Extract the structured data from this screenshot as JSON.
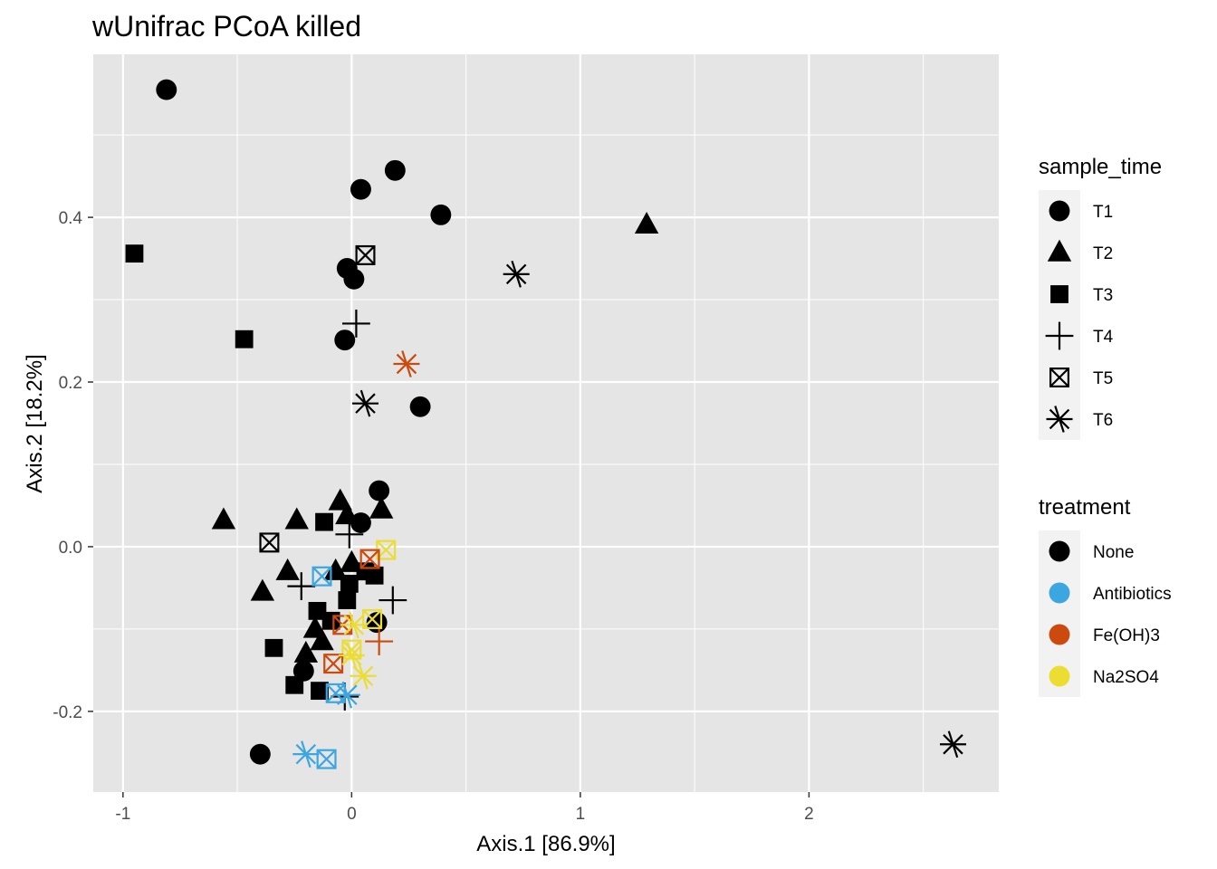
{
  "chart_data": {
    "type": "scatter",
    "title": "wUnifrac PCoA killed",
    "xlabel": "Axis.1   [86.9%]",
    "ylabel": "Axis.2   [18.2%]",
    "xlim": [
      -1.13,
      2.83
    ],
    "ylim": [
      -0.298,
      0.598
    ],
    "x_ticks": [
      -1,
      0,
      1,
      2
    ],
    "x_tick_labels": [
      "-1",
      "0",
      "1",
      "2"
    ],
    "y_ticks": [
      -0.2,
      0.0,
      0.2,
      0.4
    ],
    "y_tick_labels": [
      "-0.2",
      "0.0",
      "0.2",
      "0.4"
    ],
    "grid": true,
    "panel_background": "#e5e5e5",
    "grid_color": "#ffffff",
    "legends": [
      {
        "title": "sample_time",
        "placement": "right-top",
        "entries": [
          {
            "label": "T1",
            "shape": "circle"
          },
          {
            "label": "T2",
            "shape": "triangle"
          },
          {
            "label": "T3",
            "shape": "square"
          },
          {
            "label": "T4",
            "shape": "plus"
          },
          {
            "label": "T5",
            "shape": "square-x"
          },
          {
            "label": "T6",
            "shape": "asterisk"
          }
        ]
      },
      {
        "title": "treatment",
        "placement": "right-middle",
        "entries": [
          {
            "label": "None",
            "color": "#000000"
          },
          {
            "label": "Antibiotics",
            "color": "#3ba6e0"
          },
          {
            "label": "Fe(OH)3",
            "color": "#cc4a0e"
          },
          {
            "label": "Na2SO4",
            "color": "#ebdd31"
          }
        ]
      }
    ],
    "points": [
      {
        "x": -0.81,
        "y": 0.555,
        "time": "T1",
        "treatment": "None"
      },
      {
        "x": 0.19,
        "y": 0.457,
        "time": "T1",
        "treatment": "None"
      },
      {
        "x": 0.04,
        "y": 0.434,
        "time": "T1",
        "treatment": "None"
      },
      {
        "x": 0.39,
        "y": 0.403,
        "time": "T1",
        "treatment": "None"
      },
      {
        "x": -0.02,
        "y": 0.338,
        "time": "T1",
        "treatment": "None"
      },
      {
        "x": 0.01,
        "y": 0.325,
        "time": "T1",
        "treatment": "None"
      },
      {
        "x": -0.03,
        "y": 0.251,
        "time": "T1",
        "treatment": "None"
      },
      {
        "x": 0.3,
        "y": 0.17,
        "time": "T1",
        "treatment": "None"
      },
      {
        "x": 0.12,
        "y": 0.068,
        "time": "T1",
        "treatment": "None"
      },
      {
        "x": 0.04,
        "y": 0.029,
        "time": "T1",
        "treatment": "None"
      },
      {
        "x": 0.11,
        "y": -0.092,
        "time": "T1",
        "treatment": "None"
      },
      {
        "x": -0.21,
        "y": -0.151,
        "time": "T1",
        "treatment": "None"
      },
      {
        "x": -0.4,
        "y": -0.252,
        "time": "T1",
        "treatment": "None"
      },
      {
        "x": 1.29,
        "y": 0.391,
        "time": "T2",
        "treatment": "None"
      },
      {
        "x": -0.56,
        "y": 0.032,
        "time": "T2",
        "treatment": "None"
      },
      {
        "x": -0.24,
        "y": 0.032,
        "time": "T2",
        "treatment": "None"
      },
      {
        "x": -0.05,
        "y": 0.055,
        "time": "T2",
        "treatment": "None"
      },
      {
        "x": -0.02,
        "y": 0.038,
        "time": "T2",
        "treatment": "None"
      },
      {
        "x": 0.13,
        "y": 0.045,
        "time": "T2",
        "treatment": "None"
      },
      {
        "x": -0.39,
        "y": -0.055,
        "time": "T2",
        "treatment": "None"
      },
      {
        "x": -0.28,
        "y": -0.03,
        "time": "T2",
        "treatment": "None"
      },
      {
        "x": -0.07,
        "y": -0.03,
        "time": "T2",
        "treatment": "None"
      },
      {
        "x": 0.0,
        "y": -0.02,
        "time": "T2",
        "treatment": "None"
      },
      {
        "x": -0.16,
        "y": -0.1,
        "time": "T2",
        "treatment": "None"
      },
      {
        "x": -0.13,
        "y": -0.115,
        "time": "T2",
        "treatment": "None"
      },
      {
        "x": -0.2,
        "y": -0.13,
        "time": "T2",
        "treatment": "None"
      },
      {
        "x": -0.95,
        "y": 0.356,
        "time": "T3",
        "treatment": "None"
      },
      {
        "x": -0.47,
        "y": 0.252,
        "time": "T3",
        "treatment": "None"
      },
      {
        "x": -0.12,
        "y": 0.03,
        "time": "T3",
        "treatment": "None"
      },
      {
        "x": 0.1,
        "y": -0.035,
        "time": "T3",
        "treatment": "None"
      },
      {
        "x": 0.06,
        "y": -0.03,
        "time": "T3",
        "treatment": "None"
      },
      {
        "x": -0.01,
        "y": -0.045,
        "time": "T3",
        "treatment": "None"
      },
      {
        "x": -0.02,
        "y": -0.065,
        "time": "T3",
        "treatment": "None"
      },
      {
        "x": -0.15,
        "y": -0.078,
        "time": "T3",
        "treatment": "None"
      },
      {
        "x": -0.09,
        "y": -0.09,
        "time": "T3",
        "treatment": "None"
      },
      {
        "x": -0.34,
        "y": -0.123,
        "time": "T3",
        "treatment": "None"
      },
      {
        "x": -0.25,
        "y": -0.168,
        "time": "T3",
        "treatment": "None"
      },
      {
        "x": -0.14,
        "y": -0.175,
        "time": "T3",
        "treatment": "None"
      },
      {
        "x": 0.02,
        "y": 0.271,
        "time": "T4",
        "treatment": "None"
      },
      {
        "x": -0.01,
        "y": 0.015,
        "time": "T4",
        "treatment": "None"
      },
      {
        "x": -0.22,
        "y": -0.048,
        "time": "T4",
        "treatment": "None"
      },
      {
        "x": 0.18,
        "y": -0.065,
        "time": "T4",
        "treatment": "None"
      },
      {
        "x": 0.12,
        "y": -0.115,
        "time": "T4",
        "treatment": "Fe(OH)3"
      },
      {
        "x": -0.03,
        "y": -0.182,
        "time": "T4",
        "treatment": "None"
      },
      {
        "x": 0.06,
        "y": 0.354,
        "time": "T5",
        "treatment": "None"
      },
      {
        "x": -0.36,
        "y": 0.005,
        "time": "T5",
        "treatment": "None"
      },
      {
        "x": -0.13,
        "y": -0.036,
        "time": "T5",
        "treatment": "Antibiotics"
      },
      {
        "x": 0.15,
        "y": -0.004,
        "time": "T5",
        "treatment": "Na2SO4"
      },
      {
        "x": 0.08,
        "y": -0.015,
        "time": "T5",
        "treatment": "Fe(OH)3"
      },
      {
        "x": 0.09,
        "y": -0.088,
        "time": "T5",
        "treatment": "Na2SO4"
      },
      {
        "x": -0.04,
        "y": -0.095,
        "time": "T5",
        "treatment": "Fe(OH)3"
      },
      {
        "x": 0.0,
        "y": -0.125,
        "time": "T5",
        "treatment": "Na2SO4"
      },
      {
        "x": -0.08,
        "y": -0.142,
        "time": "T5",
        "treatment": "Fe(OH)3"
      },
      {
        "x": -0.07,
        "y": -0.178,
        "time": "T5",
        "treatment": "Antibiotics"
      },
      {
        "x": -0.11,
        "y": -0.258,
        "time": "T5",
        "treatment": "Antibiotics"
      },
      {
        "x": 0.72,
        "y": 0.331,
        "time": "T6",
        "treatment": "None"
      },
      {
        "x": 0.24,
        "y": 0.222,
        "time": "T6",
        "treatment": "Fe(OH)3"
      },
      {
        "x": 0.06,
        "y": 0.174,
        "time": "T6",
        "treatment": "None"
      },
      {
        "x": 0.01,
        "y": -0.095,
        "time": "T6",
        "treatment": "Na2SO4"
      },
      {
        "x": 0.0,
        "y": -0.132,
        "time": "T6",
        "treatment": "Na2SO4"
      },
      {
        "x": 0.05,
        "y": -0.157,
        "time": "T6",
        "treatment": "Na2SO4"
      },
      {
        "x": -0.02,
        "y": -0.18,
        "time": "T6",
        "treatment": "Antibiotics"
      },
      {
        "x": -0.2,
        "y": -0.252,
        "time": "T6",
        "treatment": "Antibiotics"
      },
      {
        "x": 2.63,
        "y": -0.24,
        "time": "T6",
        "treatment": "None"
      }
    ]
  }
}
